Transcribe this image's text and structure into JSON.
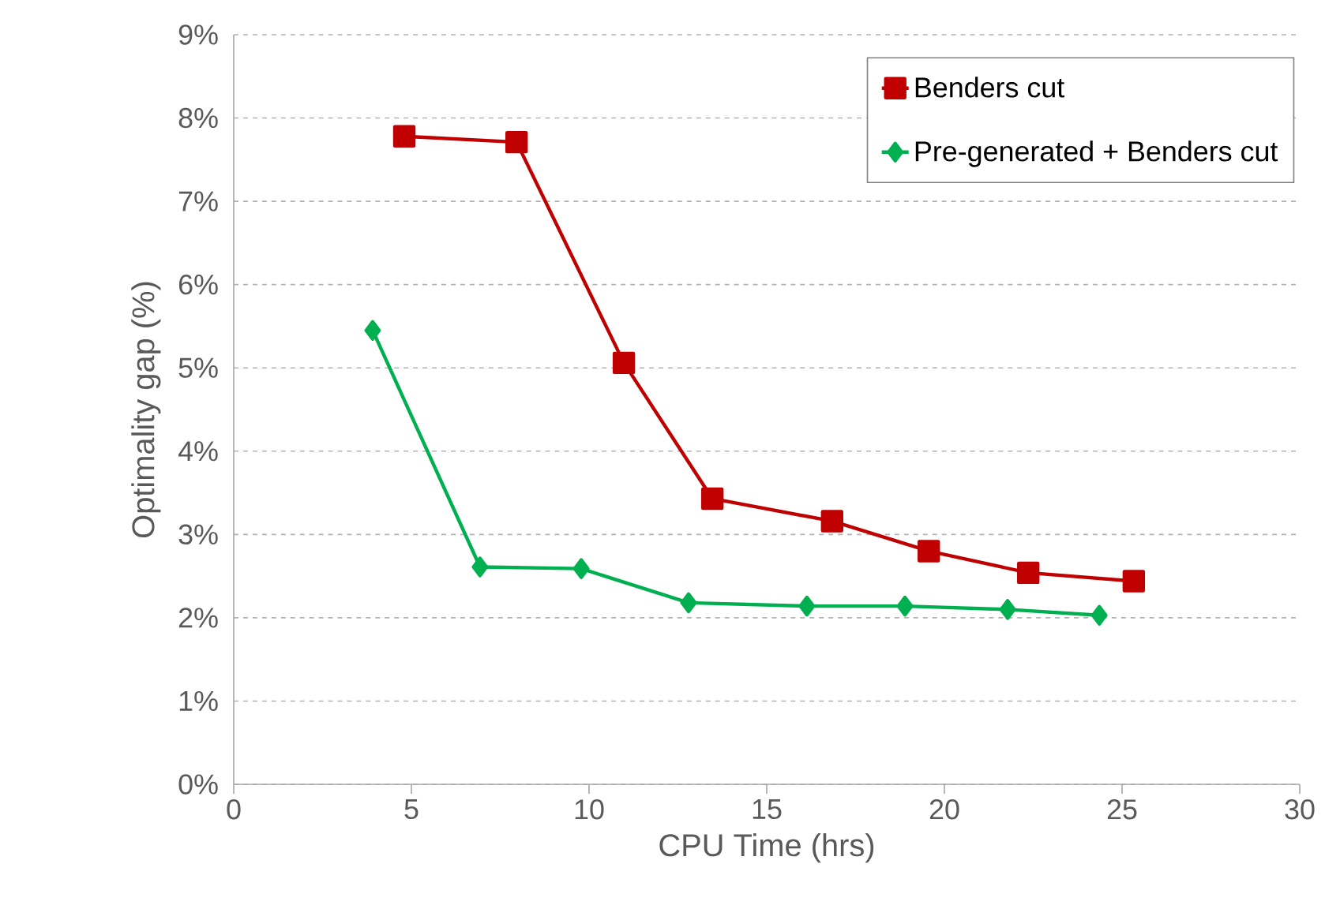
{
  "chart_data": {
    "type": "line",
    "xlabel": "CPU Time (hrs)",
    "ylabel": "Optimality gap (%)",
    "xlim": [
      0,
      30
    ],
    "xticks": [
      0,
      5,
      10,
      15,
      20,
      25,
      30
    ],
    "ylim": [
      0,
      9
    ],
    "yticks": [
      {
        "value": 0,
        "label": "0%"
      },
      {
        "value": 1,
        "label": "1%"
      },
      {
        "value": 2,
        "label": "2%"
      },
      {
        "value": 3,
        "label": "3%"
      },
      {
        "value": 4,
        "label": "4%"
      },
      {
        "value": 5,
        "label": "5%"
      },
      {
        "value": 6,
        "label": "6%"
      },
      {
        "value": 7,
        "label": "7%"
      },
      {
        "value": 8,
        "label": "8%"
      },
      {
        "value": 9,
        "label": "9%"
      }
    ],
    "grid": "y",
    "legend": "top right",
    "line_style": "solid",
    "series": [
      {
        "name": "Benders cut",
        "color": "#c00000",
        "marker": "square",
        "x": [
          4.8,
          7.96,
          10.98,
          13.47,
          16.84,
          19.56,
          22.36,
          25.33
        ],
        "values": [
          7.78,
          7.71,
          5.06,
          3.43,
          3.16,
          2.8,
          2.54,
          2.44
        ]
      },
      {
        "name": "Pre-generated + Benders cut",
        "color": "#00b050",
        "marker": "diamond",
        "x": [
          3.91,
          6.93,
          9.78,
          12.8,
          16.13,
          18.89,
          21.78,
          24.36
        ],
        "values": [
          5.45,
          2.61,
          2.59,
          2.18,
          2.14,
          2.14,
          2.1,
          2.03
        ]
      }
    ]
  }
}
